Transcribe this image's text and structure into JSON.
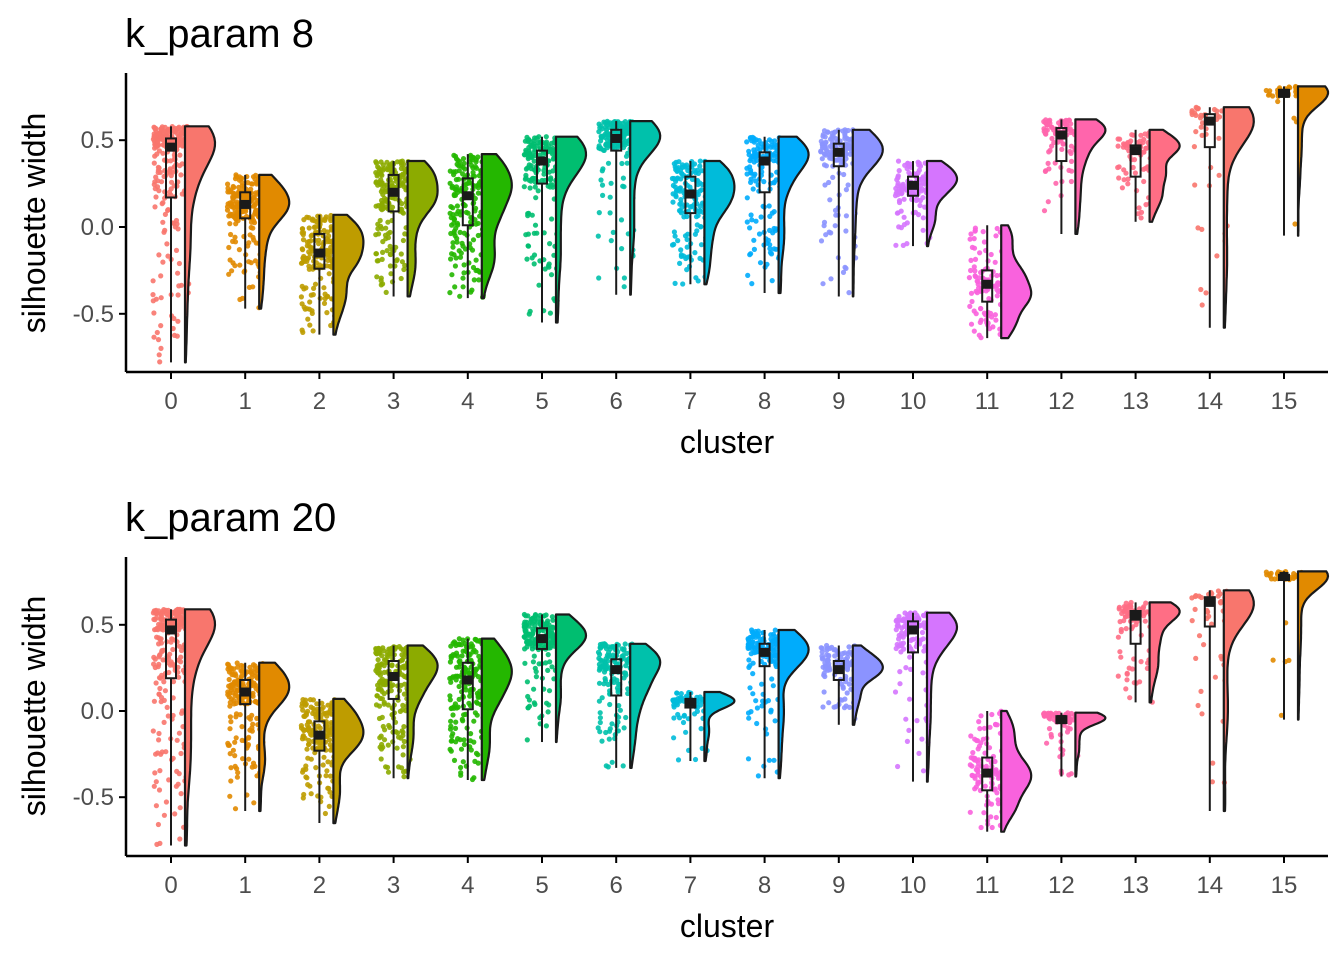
{
  "chart_data": [
    {
      "type": "raincloud",
      "title": "k_param 8",
      "xlabel": "cluster",
      "ylabel": "silhouette width",
      "ylim": [
        -0.85,
        0.9
      ],
      "yticks": [
        -0.5,
        0.0,
        0.5
      ],
      "ytick_labels": [
        "-0.5",
        "0.0",
        "0.5"
      ],
      "categories": [
        "0",
        "1",
        "2",
        "3",
        "4",
        "5",
        "6",
        "7",
        "8",
        "9",
        "10",
        "11",
        "12",
        "13",
        "14",
        "15"
      ],
      "colors": [
        "#F8766D",
        "#E18A00",
        "#BE9C00",
        "#8CAB00",
        "#24B700",
        "#00BE70",
        "#00C1AB",
        "#00BBDA",
        "#00ACFC",
        "#8B93FF",
        "#D575FE",
        "#F962DD",
        "#FF65AC",
        "#FF6E85",
        "#F8766D",
        "#E18A00"
      ],
      "clusters": [
        {
          "min": -0.78,
          "q1": 0.17,
          "median": 0.46,
          "q3": 0.51,
          "max": 0.58,
          "whisker_low": -0.78,
          "whisker_high": 0.58,
          "n": 260
        },
        {
          "min": -0.47,
          "q1": 0.05,
          "median": 0.13,
          "q3": 0.2,
          "max": 0.3,
          "whisker_low": -0.47,
          "whisker_high": 0.3,
          "n": 200
        },
        {
          "min": -0.62,
          "q1": -0.24,
          "median": -0.15,
          "q3": -0.04,
          "max": 0.07,
          "whisker_low": -0.62,
          "whisker_high": 0.07,
          "n": 180
        },
        {
          "min": -0.4,
          "q1": 0.09,
          "median": 0.2,
          "q3": 0.3,
          "max": 0.38,
          "whisker_low": -0.4,
          "whisker_high": 0.38,
          "n": 200
        },
        {
          "min": -0.41,
          "q1": 0.01,
          "median": 0.18,
          "q3": 0.28,
          "max": 0.42,
          "whisker_low": -0.41,
          "whisker_high": 0.42,
          "n": 190
        },
        {
          "min": -0.55,
          "q1": 0.25,
          "median": 0.38,
          "q3": 0.44,
          "max": 0.52,
          "whisker_low": -0.55,
          "whisker_high": 0.52,
          "n": 180
        },
        {
          "min": -0.39,
          "q1": 0.44,
          "median": 0.51,
          "q3": 0.56,
          "max": 0.61,
          "whisker_low": -0.39,
          "whisker_high": 0.61,
          "n": 170
        },
        {
          "min": -0.33,
          "q1": 0.08,
          "median": 0.19,
          "q3": 0.29,
          "max": 0.38,
          "whisker_low": -0.33,
          "whisker_high": 0.38,
          "n": 160
        },
        {
          "min": -0.38,
          "q1": 0.2,
          "median": 0.38,
          "q3": 0.43,
          "max": 0.52,
          "whisker_low": -0.38,
          "whisker_high": 0.52,
          "n": 150
        },
        {
          "min": -0.4,
          "q1": 0.35,
          "median": 0.43,
          "q3": 0.48,
          "max": 0.56,
          "whisker_low": -0.4,
          "whisker_high": 0.56,
          "n": 140
        },
        {
          "min": -0.11,
          "q1": 0.18,
          "median": 0.24,
          "q3": 0.29,
          "max": 0.38,
          "whisker_low": -0.11,
          "whisker_high": 0.38,
          "n": 130
        },
        {
          "min": -0.64,
          "q1": -0.43,
          "median": -0.33,
          "q3": -0.25,
          "max": 0.01,
          "whisker_low": -0.64,
          "whisker_high": 0.01,
          "n": 110
        },
        {
          "min": -0.04,
          "q1": 0.38,
          "median": 0.53,
          "q3": 0.57,
          "max": 0.62,
          "whisker_low": -0.04,
          "whisker_high": 0.62,
          "n": 90
        },
        {
          "min": 0.03,
          "q1": 0.29,
          "median": 0.44,
          "q3": 0.47,
          "max": 0.56,
          "whisker_low": 0.03,
          "whisker_high": 0.56,
          "n": 70
        },
        {
          "min": -0.58,
          "q1": 0.46,
          "median": 0.61,
          "q3": 0.65,
          "max": 0.69,
          "whisker_low": -0.58,
          "whisker_high": 0.69,
          "n": 45
        },
        {
          "min": -0.05,
          "q1": 0.75,
          "median": 0.77,
          "q3": 0.79,
          "max": 0.81,
          "whisker_low": -0.05,
          "whisker_high": 0.81,
          "n": 40
        }
      ]
    },
    {
      "type": "raincloud",
      "title": "k_param 20",
      "xlabel": "cluster",
      "ylabel": "silhouette width",
      "ylim": [
        -0.85,
        0.9
      ],
      "yticks": [
        -0.5,
        0.0,
        0.5
      ],
      "ytick_labels": [
        "-0.5",
        "0.0",
        "0.5"
      ],
      "categories": [
        "0",
        "1",
        "2",
        "3",
        "4",
        "5",
        "6",
        "7",
        "8",
        "9",
        "10",
        "11",
        "12",
        "13",
        "14",
        "15"
      ],
      "colors": [
        "#F8766D",
        "#E18A00",
        "#BE9C00",
        "#8CAB00",
        "#24B700",
        "#00BE70",
        "#00C1AB",
        "#00BBDA",
        "#00ACFC",
        "#8B93FF",
        "#D575FE",
        "#F962DD",
        "#FF65AC",
        "#FF6E85",
        "#F8766D",
        "#E18A00"
      ],
      "clusters": [
        {
          "min": -0.78,
          "q1": 0.19,
          "median": 0.47,
          "q3": 0.53,
          "max": 0.59,
          "whisker_low": -0.78,
          "whisker_high": 0.59,
          "n": 260
        },
        {
          "min": -0.58,
          "q1": 0.04,
          "median": 0.11,
          "q3": 0.18,
          "max": 0.28,
          "whisker_low": -0.58,
          "whisker_high": 0.28,
          "n": 200
        },
        {
          "min": -0.65,
          "q1": -0.23,
          "median": -0.14,
          "q3": -0.06,
          "max": 0.07,
          "whisker_low": -0.65,
          "whisker_high": 0.07,
          "n": 180
        },
        {
          "min": -0.39,
          "q1": 0.07,
          "median": 0.2,
          "q3": 0.29,
          "max": 0.38,
          "whisker_low": -0.39,
          "whisker_high": 0.38,
          "n": 200
        },
        {
          "min": -0.4,
          "q1": 0.01,
          "median": 0.18,
          "q3": 0.28,
          "max": 0.42,
          "whisker_low": -0.4,
          "whisker_high": 0.42,
          "n": 190
        },
        {
          "min": -0.18,
          "q1": 0.36,
          "median": 0.42,
          "q3": 0.48,
          "max": 0.56,
          "whisker_low": -0.18,
          "whisker_high": 0.56,
          "n": 180
        },
        {
          "min": -0.33,
          "q1": 0.09,
          "median": 0.24,
          "q3": 0.3,
          "max": 0.39,
          "whisker_low": -0.33,
          "whisker_high": 0.39,
          "n": 160
        },
        {
          "min": -0.29,
          "q1": 0.02,
          "median": 0.05,
          "q3": 0.07,
          "max": 0.11,
          "whisker_low": -0.29,
          "whisker_high": 0.11,
          "n": 60
        },
        {
          "min": -0.39,
          "q1": 0.26,
          "median": 0.34,
          "q3": 0.39,
          "max": 0.47,
          "whisker_low": -0.39,
          "whisker_high": 0.47,
          "n": 150
        },
        {
          "min": -0.08,
          "q1": 0.18,
          "median": 0.24,
          "q3": 0.29,
          "max": 0.38,
          "whisker_low": -0.08,
          "whisker_high": 0.38,
          "n": 120
        },
        {
          "min": -0.41,
          "q1": 0.34,
          "median": 0.47,
          "q3": 0.52,
          "max": 0.57,
          "whisker_low": -0.41,
          "whisker_high": 0.57,
          "n": 140
        },
        {
          "min": -0.7,
          "q1": -0.46,
          "median": -0.36,
          "q3": -0.27,
          "max": 0.0,
          "whisker_low": -0.7,
          "whisker_high": 0.0,
          "n": 120
        },
        {
          "min": -0.38,
          "q1": -0.07,
          "median": -0.05,
          "q3": -0.03,
          "max": -0.01,
          "whisker_low": -0.38,
          "whisker_high": -0.01,
          "n": 70
        },
        {
          "min": 0.05,
          "q1": 0.39,
          "median": 0.55,
          "q3": 0.58,
          "max": 0.63,
          "whisker_low": 0.05,
          "whisker_high": 0.63,
          "n": 80
        },
        {
          "min": -0.58,
          "q1": 0.49,
          "median": 0.63,
          "q3": 0.66,
          "max": 0.7,
          "whisker_low": -0.58,
          "whisker_high": 0.7,
          "n": 45
        },
        {
          "min": -0.05,
          "q1": 0.76,
          "median": 0.78,
          "q3": 0.79,
          "max": 0.81,
          "whisker_low": -0.05,
          "whisker_high": 0.81,
          "n": 40
        }
      ]
    }
  ]
}
